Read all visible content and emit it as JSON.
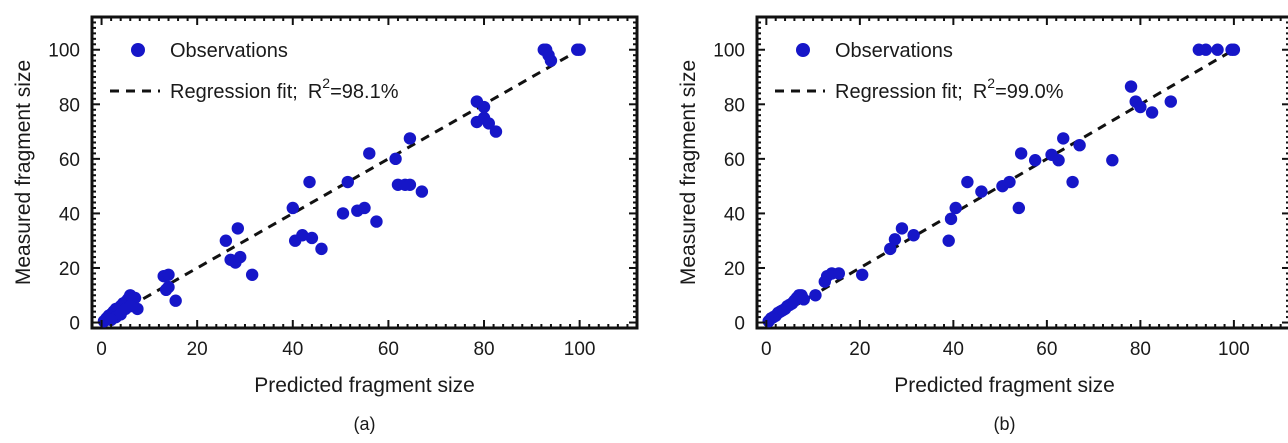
{
  "colors": {
    "marker": "#1616c8",
    "fit": "#111111",
    "axes": "#111111"
  },
  "chart_data": [
    {
      "type": "scatter",
      "caption": "(a)",
      "xlabel": "Predicted fragment size",
      "ylabel": "Measured fragment size",
      "xlim": [
        -2,
        112
      ],
      "ylim": [
        -2,
        112
      ],
      "xticks": [
        0,
        20,
        40,
        60,
        80,
        100
      ],
      "yticks": [
        0,
        20,
        40,
        60,
        80,
        100
      ],
      "legend": {
        "position": "top-left",
        "observations_label": "Observations",
        "fit_label": "Regression fit;",
        "r2_label": "R",
        "r2_sup": "2",
        "r2_value": "=98.1%"
      },
      "fit_line": [
        [
          0,
          0
        ],
        [
          100,
          100
        ]
      ],
      "series": [
        {
          "x": [
            0.5,
            1,
            1.5,
            2,
            2.5,
            3,
            3.5,
            4,
            4.5,
            5,
            5.5,
            6,
            6.5,
            7,
            7.5,
            3,
            4,
            5,
            2,
            6,
            13,
            14,
            14,
            13.5,
            15.5,
            26,
            27,
            28,
            28.5,
            29,
            31.5,
            40,
            40.5,
            42,
            43.5,
            44,
            46,
            50.5,
            51.5,
            53.5,
            55,
            56,
            57.5,
            61.5,
            62,
            63.5,
            64.5,
            64.5,
            67,
            78.5,
            78.5,
            80,
            80,
            81,
            82.5,
            92.5,
            93,
            93.5,
            94,
            99.5,
            100
          ],
          "y": [
            0.5,
            1.5,
            2.5,
            3,
            4,
            5,
            4.5,
            6,
            7,
            7.5,
            8.5,
            10,
            9,
            9,
            5,
            2,
            3,
            5,
            1,
            6,
            17,
            17.5,
            13,
            12,
            8,
            30,
            23,
            22,
            34.5,
            24,
            17.5,
            42,
            30,
            32,
            51.5,
            31,
            27,
            40,
            51.5,
            41,
            42,
            62,
            37,
            60,
            50.5,
            50.5,
            50.5,
            67.5,
            48,
            81,
            73.5,
            75,
            79,
            73,
            70,
            100,
            100,
            98,
            96,
            100,
            100
          ]
        }
      ]
    },
    {
      "type": "scatter",
      "caption": "(b)",
      "xlabel": "Predicted fragment size",
      "ylabel": "Measured fragment size",
      "xlim": [
        -2,
        112
      ],
      "ylim": [
        -2,
        112
      ],
      "xticks": [
        0,
        20,
        40,
        60,
        80,
        100
      ],
      "yticks": [
        0,
        20,
        40,
        60,
        80,
        100
      ],
      "legend": {
        "position": "top-left",
        "observations_label": "Observations",
        "fit_label": "Regression fit;",
        "r2_label": "R",
        "r2_sup": "2",
        "r2_value": "=99.0%"
      },
      "fit_line": [
        [
          0,
          0
        ],
        [
          100,
          100
        ]
      ],
      "series": [
        {
          "x": [
            0.5,
            1,
            1.5,
            2,
            2.5,
            3,
            3.5,
            4,
            4.5,
            5,
            5.5,
            6,
            6.5,
            7,
            7.5,
            8,
            10.5,
            12.5,
            13,
            14,
            15.5,
            20.5,
            26.5,
            27.5,
            29,
            31.5,
            39,
            39.5,
            40.5,
            43,
            46,
            50.5,
            52,
            54,
            54.5,
            57.5,
            61,
            62.5,
            63.5,
            65.5,
            67,
            74,
            78,
            79,
            80,
            82.5,
            86.5,
            92.5,
            94,
            96.5,
            99.5,
            100
          ],
          "y": [
            0.5,
            1.5,
            2,
            2.5,
            3.5,
            4,
            4.5,
            5,
            6,
            6.5,
            7,
            8,
            9,
            10,
            10,
            8.5,
            10,
            15,
            17,
            18,
            18,
            17.5,
            27,
            30.5,
            34.5,
            32,
            30,
            38,
            42,
            51.5,
            48,
            50,
            51.5,
            42,
            62,
            59.5,
            61.5,
            59.5,
            67.5,
            51.5,
            65,
            59.5,
            86.5,
            81,
            79,
            77,
            81,
            100,
            100,
            100,
            100,
            100
          ]
        }
      ]
    }
  ]
}
